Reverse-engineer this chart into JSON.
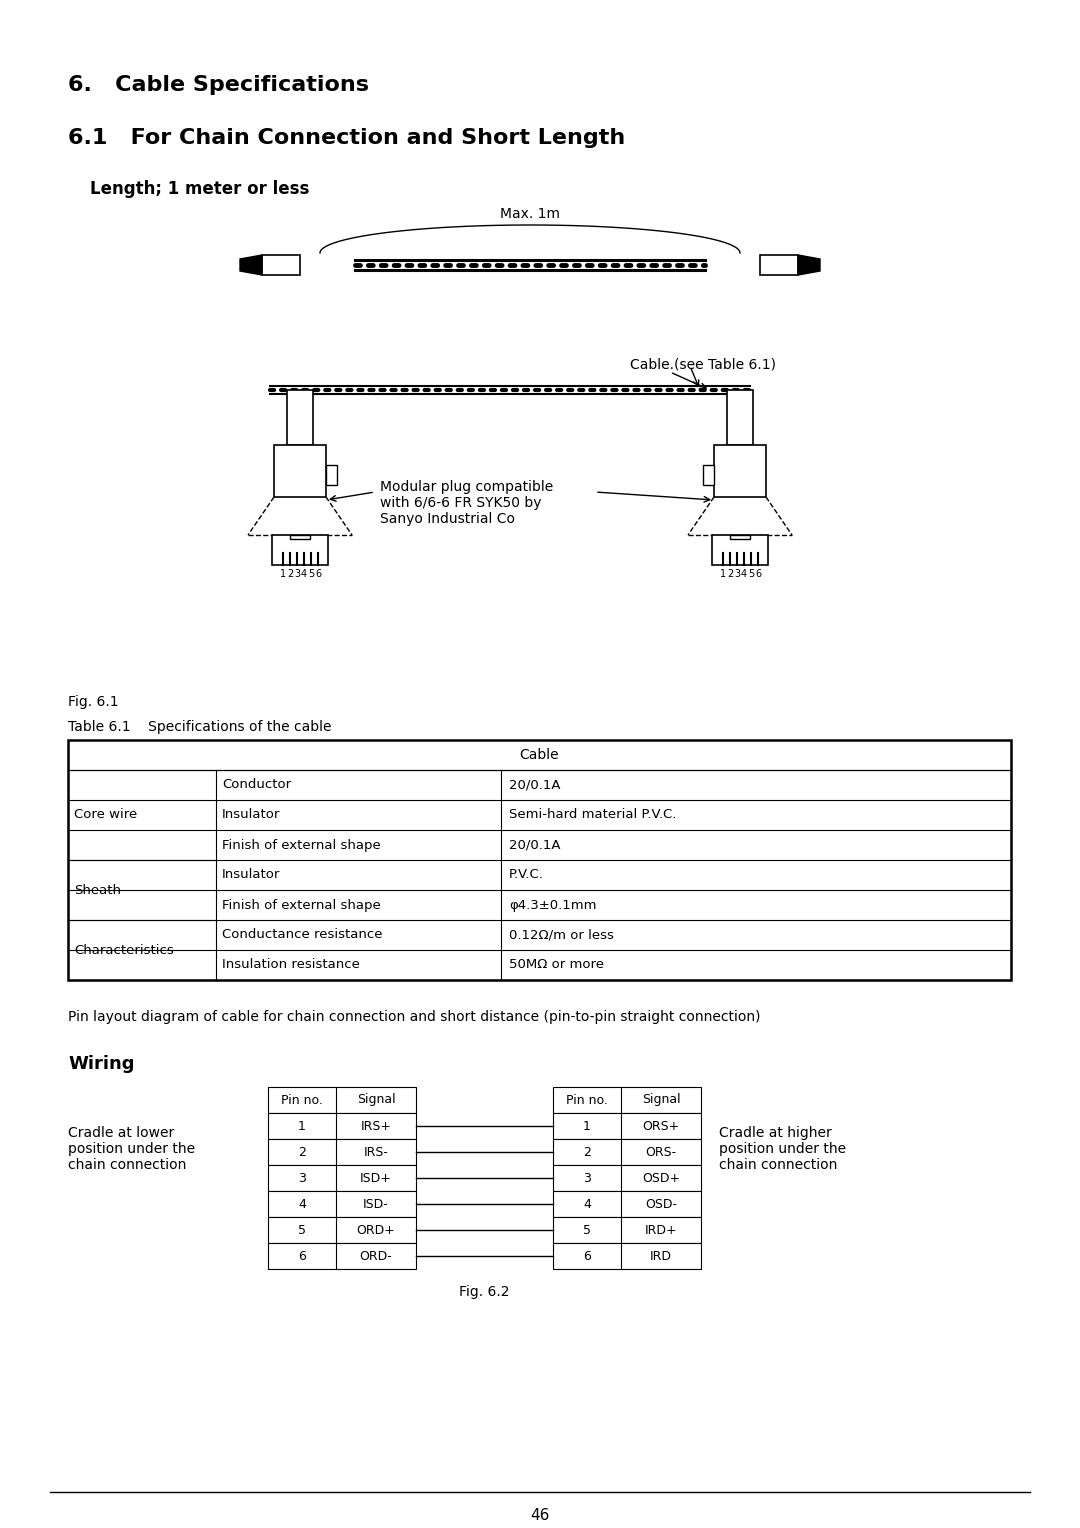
{
  "title1": "6.   Cable Specifications",
  "title2": "6.1   For Chain Connection and Short Length",
  "subtitle": "Length; 1 meter or less",
  "fig_label": "Fig. 6.1",
  "fig2_label": "Fig. 6.2",
  "table_title": "Table 6.1    Specifications of the cable",
  "table_header": "Cable",
  "table_col2": [
    "Conductor",
    "Insulator",
    "Finish of external shape",
    "Insulator",
    "Finish of external shape",
    "Conductance resistance",
    "Insulation resistance"
  ],
  "table_col3": [
    "20/0.1A",
    "Semi-hard material P.V.C.",
    "20/0.1A",
    "P.V.C.",
    "φ4.3±0.1mm",
    "0.12Ω/m or less",
    "50MΩ or more"
  ],
  "pin_note": "Pin layout diagram of cable for chain connection and short distance (pin-to-pin straight connection)",
  "wiring_title": "Wiring",
  "left_label": "Cradle at lower\nposition under the\nchain connection",
  "right_label": "Cradle at higher\nposition under the\nchain connection",
  "wiring_rows": [
    [
      "1",
      "IRS+",
      "1",
      "ORS+"
    ],
    [
      "2",
      "IRS-",
      "2",
      "ORS-"
    ],
    [
      "3",
      "ISD+",
      "3",
      "OSD+"
    ],
    [
      "4",
      "ISD-",
      "4",
      "OSD-"
    ],
    [
      "5",
      "ORD+",
      "5",
      "IRD+"
    ],
    [
      "6",
      "ORD-",
      "6",
      "IRD"
    ]
  ],
  "max_label": "Max. 1m",
  "cable_label": "Cable.(see Table 6.1)",
  "modular_label": "Modular plug compatible\nwith 6/6-6 FR SYK50 by\nSanyo Industrial Co",
  "bg_color": "#ffffff",
  "text_color": "#000000",
  "page_num": "46"
}
